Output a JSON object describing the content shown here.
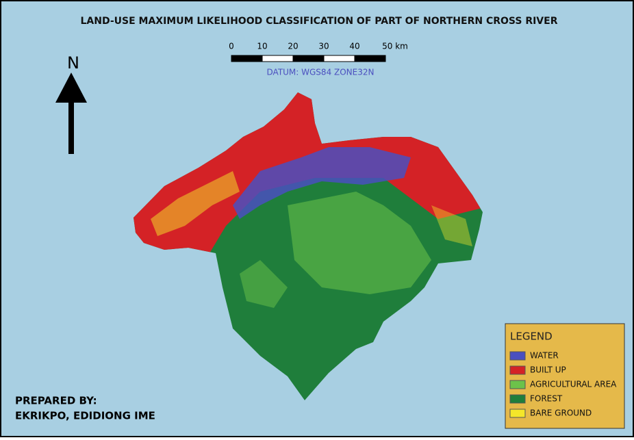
{
  "title": "LAND-USE MAXIMUM LIKELIHOOD CLASSIFICATION OF PART OF NORTHERN CROSS RIVER",
  "scale_bar": {
    "labels": [
      "0",
      "10",
      "20",
      "30",
      "40",
      "50 km"
    ],
    "datum": "DATUM: WGS84 ZONE32N"
  },
  "north_arrow": {
    "label": "N"
  },
  "legend": {
    "title": "LEGEND",
    "items": [
      {
        "label": "WATER",
        "color": "#4a4fc0"
      },
      {
        "label": "BUILT UP",
        "color": "#d42226"
      },
      {
        "label": "AGRICULTURAL AREA",
        "color": "#6cc24a"
      },
      {
        "label": "FOREST",
        "color": "#1f7e3b"
      },
      {
        "label": "BARE GROUND",
        "color": "#f4e62a"
      }
    ]
  },
  "credit": {
    "heading": "PREPARED BY:",
    "name": "EKRIKPO, EDIDIONG IME"
  }
}
